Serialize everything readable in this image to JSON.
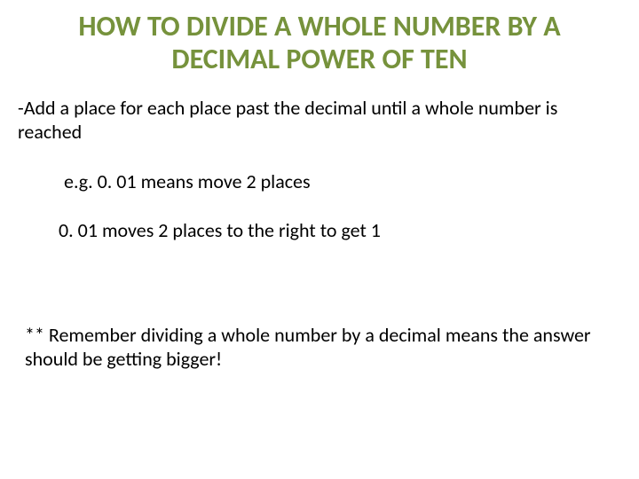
{
  "slide": {
    "title": "HOW TO DIVIDE A WHOLE NUMBER BY  A DECIMAL POWER OF TEN",
    "rule": "-Add a place for each place past the decimal until a whole number is reached",
    "example1": "e.g. 0. 01  means move 2 places",
    "example2": "0. 01 moves 2 places to the right to get 1",
    "reminder": "** Remember dividing a whole number by a decimal means the answer should be getting bigger!"
  },
  "colors": {
    "title_color": "#76923c",
    "body_color": "#000000",
    "background": "#ffffff"
  },
  "typography": {
    "title_fontsize": 32,
    "body_fontsize": 22,
    "title_weight": "bold",
    "font_family": "Calibri, Arial, sans-serif"
  }
}
